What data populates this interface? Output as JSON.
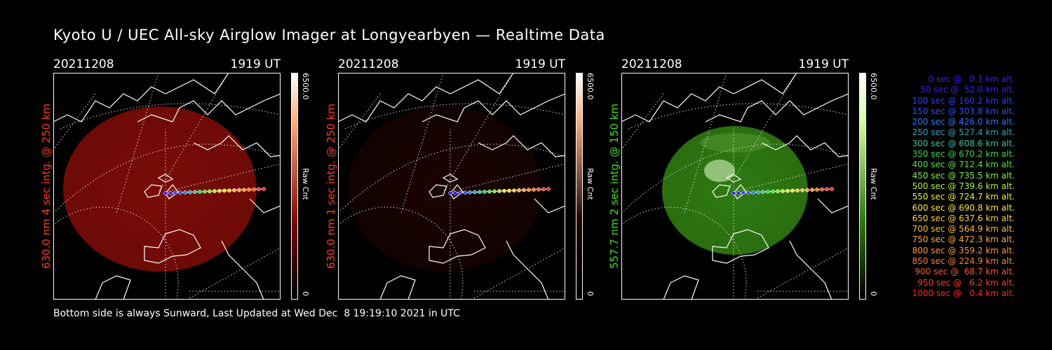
{
  "title": "Kyoto U / UEC All-sky Airglow Imager at Longyearbyen — Realtime Data",
  "footer": "Bottom side is always Sunward, Last Updated at Wed Dec  8 19:19:10 2021 in UTC",
  "panels": [
    {
      "date": "20211208",
      "time": "1919 UT",
      "ylabel": "630.0 nm 4 sec intg. @ 250 km",
      "label_color": "#ff3b1e",
      "cbar_max": "6500.0",
      "cbar_min": "0",
      "cbar_label": "Raw Cnt",
      "image_color": "#7a0c08",
      "image_intensity": "medium"
    },
    {
      "date": "20211208",
      "time": "1919 UT",
      "ylabel": "630.0 nm 1 sec intg. @ 250 km",
      "label_color": "#ff3b1e",
      "cbar_max": "6500.0",
      "cbar_min": "0",
      "cbar_label": "Raw Cnt",
      "image_color": "#1e0403",
      "image_intensity": "low"
    },
    {
      "date": "20211208",
      "time": "1919 UT",
      "ylabel": "557.7 nm 2 sec intg. @ 150 km",
      "label_color": "#3be01e",
      "cbar_max": "6500.0",
      "cbar_min": "0",
      "cbar_label": "Raw Cnt",
      "image_color": "#2f7a12",
      "image_intensity": "high"
    }
  ],
  "legend": [
    {
      "text": "0 sec @   0.1 km alt.",
      "color": "#3a1dff"
    },
    {
      "text": "50 sec @  52.0 km alt.",
      "color": "#3a1dff"
    },
    {
      "text": "100 sec @ 160.2 km alt.",
      "color": "#2f3dff"
    },
    {
      "text": "150 sec @ 303.8 km alt.",
      "color": "#2f4dff"
    },
    {
      "text": "200 sec @ 426.0 km alt.",
      "color": "#2a7bff"
    },
    {
      "text": "250 sec @ 527.4 km alt.",
      "color": "#2aa8c8"
    },
    {
      "text": "300 sec @ 608.6 km alt.",
      "color": "#2ec89a"
    },
    {
      "text": "350 sec @ 670.2 km alt.",
      "color": "#32d84a"
    },
    {
      "text": "400 sec @ 712.4 km alt.",
      "color": "#4ee63a"
    },
    {
      "text": "450 sec @ 735.5 km alt.",
      "color": "#7ef03a"
    },
    {
      "text": "500 sec @ 739.6 km alt.",
      "color": "#b4f53a"
    },
    {
      "text": "550 sec @ 724.7 km alt.",
      "color": "#e8f03a"
    },
    {
      "text": "600 sec @ 690.8 km alt.",
      "color": "#ffe83a"
    },
    {
      "text": "650 sec @ 637.6 km alt.",
      "color": "#ffd23a"
    },
    {
      "text": "700 sec @ 564.9 km alt.",
      "color": "#ffbe3a"
    },
    {
      "text": "750 sec @ 472.3 km alt.",
      "color": "#ffaa3a"
    },
    {
      "text": "800 sec @ 359.2 km alt.",
      "color": "#ff963a"
    },
    {
      "text": "850 sec @ 224.9 km alt.",
      "color": "#ff8232"
    },
    {
      "text": "900 sec @  68.7 km alt.",
      "color": "#ff5a2a"
    },
    {
      "text": "950 sec @   6.2 km alt.",
      "color": "#ff3c24"
    },
    {
      "text": "1000 sec @   0.4 km alt.",
      "color": "#ff2a1e"
    }
  ]
}
